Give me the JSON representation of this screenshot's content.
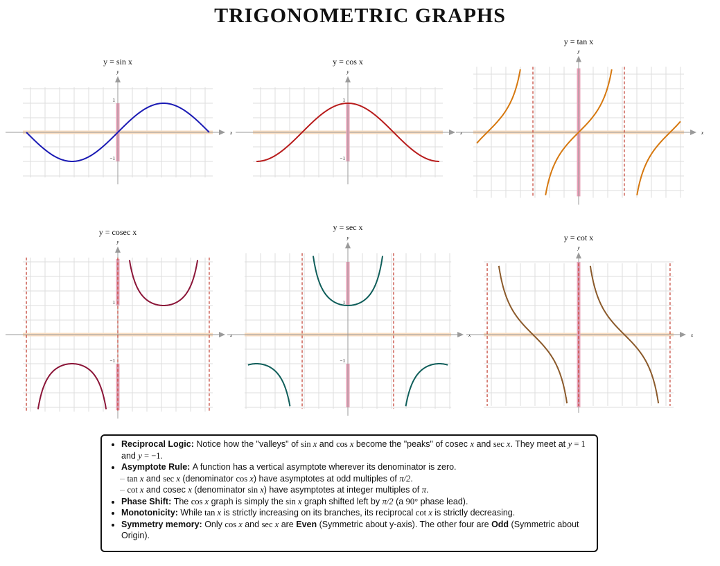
{
  "title": "TRIGONOMETRIC GRAPHS",
  "chart_data": [
    {
      "type": "line",
      "function": "sin",
      "title": "y = sin x",
      "xlabel": "x",
      "ylabel": "y",
      "xlim": [
        -3.14159,
        3.14159
      ],
      "ylim": [
        -1.5,
        1.5
      ],
      "grid": true,
      "grid_step": 0.5,
      "y_ticks": [
        {
          "v": 1,
          "label": "1"
        },
        {
          "v": -1,
          "label": "−1"
        }
      ],
      "asymptotes": [],
      "y_axis_highlight": [
        [
          -1,
          1
        ]
      ],
      "color": "#1a1ab4"
    },
    {
      "type": "line",
      "function": "cos",
      "title": "y = cos x",
      "xlabel": "x",
      "ylabel": "y",
      "xlim": [
        -3.14159,
        3.14159
      ],
      "ylim": [
        -1.5,
        1.5
      ],
      "grid": true,
      "grid_step": 0.5,
      "y_ticks": [
        {
          "v": 1,
          "label": "1"
        },
        {
          "v": -1,
          "label": "−1"
        }
      ],
      "asymptotes": [],
      "y_axis_highlight": [
        [
          -1,
          1
        ]
      ],
      "color": "#b81c1c"
    },
    {
      "type": "line",
      "function": "tan",
      "title": "y = tan x",
      "xlabel": "x",
      "ylabel": "y",
      "xlim": [
        -3.5,
        3.5
      ],
      "ylim": [
        -2.2,
        2.2
      ],
      "grid": true,
      "grid_step": 0.5,
      "y_ticks": [],
      "asymptotes": [
        -1.5708,
        1.5708
      ],
      "y_axis_highlight": [
        [
          -2.2,
          2.2
        ]
      ],
      "color": "#d6780f"
    },
    {
      "type": "line",
      "function": "cosec",
      "title": "y = cosec x",
      "xlabel": "x",
      "ylabel": "y",
      "xlim": [
        -3.14159,
        3.14159
      ],
      "ylim": [
        -2.6,
        2.6
      ],
      "grid": true,
      "grid_step": 0.5,
      "y_ticks": [
        {
          "v": 1,
          "label": "1"
        },
        {
          "v": -1,
          "label": "−1"
        }
      ],
      "asymptotes": [
        -3.14159,
        0,
        3.14159
      ],
      "y_axis_highlight": [
        [
          1,
          2.6
        ],
        [
          -2.6,
          -1
        ]
      ],
      "color": "#8b1538"
    },
    {
      "type": "line",
      "function": "sec",
      "title": "y = sec x",
      "xlabel": "x",
      "ylabel": "y",
      "xlim": [
        -3.43,
        3.43
      ],
      "ylim": [
        -2.5,
        2.75
      ],
      "grid": true,
      "grid_step": 0.5,
      "y_ticks": [
        {
          "v": 1,
          "label": "1"
        },
        {
          "v": -1,
          "label": "−1"
        }
      ],
      "asymptotes": [
        -1.5708,
        1.5708
      ],
      "y_axis_highlight": [
        [
          1,
          2.5
        ],
        [
          -2.5,
          -1
        ]
      ],
      "color": "#0f5e5a"
    },
    {
      "type": "line",
      "function": "cot",
      "title": "y = cot x",
      "xlabel": "x",
      "ylabel": "y",
      "xlim": [
        -3.14159,
        3.14159
      ],
      "ylim": [
        -2.4,
        2.4
      ],
      "grid": true,
      "grid_step": 0.5,
      "y_ticks": [],
      "asymptotes": [
        -3.14159,
        0,
        3.14159
      ],
      "y_axis_highlight": [
        [
          -2.5,
          2.5
        ]
      ],
      "color": "#8b5a2b"
    }
  ],
  "colors": {
    "asymptote": "#c0392b",
    "x_axis_band": "#f8dcc0",
    "y_axis_band": "#eaa0b8",
    "grid": "#dddddd",
    "axis": "#9a9a9a"
  },
  "notes": [
    [
      {
        "s": "b",
        "t": "Reciprocal Logic: "
      },
      {
        "t": "Notice how the \"valleys\" of "
      },
      {
        "s": "t",
        "t": "sin "
      },
      {
        "s": "m",
        "t": "x"
      },
      {
        "t": " and "
      },
      {
        "s": "t",
        "t": "cos "
      },
      {
        "s": "m",
        "t": "x"
      },
      {
        "t": " become the \"peaks\" of cosec "
      },
      {
        "s": "m",
        "t": "x"
      },
      {
        "t": " and "
      },
      {
        "s": "t",
        "t": "sec "
      },
      {
        "s": "m",
        "t": "x"
      },
      {
        "t": ". They meet at "
      },
      {
        "s": "m",
        "t": "y"
      },
      {
        "s": "t",
        "t": " = 1"
      },
      {
        "t": " and "
      },
      {
        "s": "m",
        "t": "y"
      },
      {
        "s": "t",
        "t": " = −1."
      }
    ],
    [
      {
        "s": "b",
        "t": "Asymptote Rule: "
      },
      {
        "t": "A function has a vertical asymptote wherever its denominator is zero."
      }
    ],
    {
      "sub": [
        {
          "s": "t",
          "t": "tan "
        },
        {
          "s": "m",
          "t": "x"
        },
        {
          "t": " and "
        },
        {
          "s": "t",
          "t": "sec "
        },
        {
          "s": "m",
          "t": "x"
        },
        {
          "t": " (denominator "
        },
        {
          "s": "t",
          "t": "cos "
        },
        {
          "s": "m",
          "t": "x"
        },
        {
          "t": ") have asymptotes at odd multiples of "
        },
        {
          "s": "m",
          "t": "π/2"
        },
        {
          "t": "."
        }
      ]
    },
    {
      "sub": [
        {
          "s": "t",
          "t": "cot "
        },
        {
          "s": "m",
          "t": "x"
        },
        {
          "t": " and cosec "
        },
        {
          "s": "m",
          "t": "x"
        },
        {
          "t": " (denominator "
        },
        {
          "s": "t",
          "t": "sin "
        },
        {
          "s": "m",
          "t": "x"
        },
        {
          "t": ") have asymptotes at integer multiples of "
        },
        {
          "s": "m",
          "t": "π"
        },
        {
          "t": "."
        }
      ]
    },
    [
      {
        "s": "b",
        "t": "Phase Shift: "
      },
      {
        "t": "The "
      },
      {
        "s": "t",
        "t": "cos "
      },
      {
        "s": "m",
        "t": "x"
      },
      {
        "t": " graph is simply the "
      },
      {
        "s": "t",
        "t": "sin "
      },
      {
        "s": "m",
        "t": "x"
      },
      {
        "t": " graph shifted left by "
      },
      {
        "s": "m",
        "t": "π/2"
      },
      {
        "t": " (a "
      },
      {
        "s": "t",
        "t": "90°"
      },
      {
        "t": " phase lead)."
      }
    ],
    [
      {
        "s": "b",
        "t": "Monotonicity: "
      },
      {
        "t": "While "
      },
      {
        "s": "t",
        "t": "tan "
      },
      {
        "s": "m",
        "t": "x"
      },
      {
        "t": " is strictly increasing on its branches, its reciprocal "
      },
      {
        "s": "t",
        "t": "cot "
      },
      {
        "s": "m",
        "t": "x"
      },
      {
        "t": " is strictly decreasing."
      }
    ],
    [
      {
        "s": "b",
        "t": "Symmetry memory: "
      },
      {
        "t": "Only "
      },
      {
        "s": "t",
        "t": "cos "
      },
      {
        "s": "m",
        "t": "x"
      },
      {
        "t": " and "
      },
      {
        "s": "t",
        "t": "sec "
      },
      {
        "s": "m",
        "t": "x"
      },
      {
        "t": " are "
      },
      {
        "s": "b",
        "t": "Even"
      },
      {
        "t": " (Symmetric about y-axis). The other four are "
      },
      {
        "s": "b",
        "t": "Odd"
      },
      {
        "t": " (Symmetric about Origin)."
      }
    ]
  ]
}
